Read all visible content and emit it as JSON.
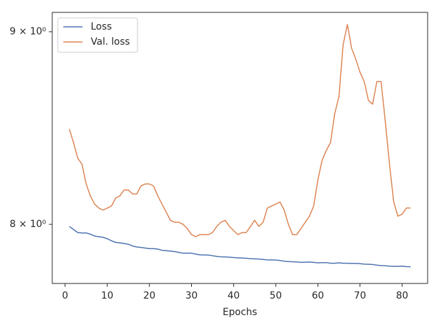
{
  "chart_data": {
    "type": "line",
    "xlabel": "Epochs",
    "log_y": true,
    "legend": "upper left",
    "x": [
      1,
      2,
      3,
      4,
      5,
      6,
      7,
      8,
      9,
      10,
      11,
      12,
      13,
      14,
      15,
      16,
      17,
      18,
      19,
      20,
      21,
      22,
      23,
      24,
      25,
      26,
      27,
      28,
      29,
      30,
      31,
      32,
      33,
      34,
      35,
      36,
      37,
      38,
      39,
      40,
      41,
      42,
      43,
      44,
      45,
      46,
      47,
      48,
      49,
      50,
      51,
      52,
      53,
      54,
      55,
      56,
      57,
      58,
      59,
      60,
      61,
      62,
      63,
      64,
      65,
      66,
      67,
      68,
      69,
      70,
      71,
      72,
      73,
      74,
      75,
      76,
      77,
      78,
      79,
      80,
      81,
      82
    ],
    "series": [
      {
        "name": "Loss",
        "color": "#4c72b0",
        "values": [
          7.99,
          7.975,
          7.96,
          7.958,
          7.958,
          7.952,
          7.943,
          7.94,
          7.937,
          7.93,
          7.92,
          7.912,
          7.91,
          7.907,
          7.903,
          7.895,
          7.89,
          7.888,
          7.885,
          7.882,
          7.882,
          7.88,
          7.874,
          7.872,
          7.87,
          7.868,
          7.864,
          7.86,
          7.86,
          7.86,
          7.856,
          7.852,
          7.852,
          7.851,
          7.848,
          7.845,
          7.843,
          7.842,
          7.841,
          7.839,
          7.838,
          7.837,
          7.836,
          7.834,
          7.833,
          7.832,
          7.83,
          7.828,
          7.828,
          7.827,
          7.825,
          7.822,
          7.82,
          7.819,
          7.818,
          7.816,
          7.817,
          7.818,
          7.816,
          7.814,
          7.815,
          7.815,
          7.812,
          7.812,
          7.814,
          7.812,
          7.812,
          7.811,
          7.811,
          7.81,
          7.808,
          7.807,
          7.806,
          7.803,
          7.801,
          7.8,
          7.798,
          7.797,
          7.797,
          7.798,
          7.796,
          7.795
        ]
      },
      {
        "name": "Val. loss",
        "color": "#dd8452",
        "values": [
          8.48,
          8.41,
          8.33,
          8.3,
          8.2,
          8.14,
          8.1,
          8.08,
          8.07,
          8.08,
          8.09,
          8.13,
          8.14,
          8.17,
          8.17,
          8.15,
          8.15,
          8.19,
          8.2,
          8.2,
          8.19,
          8.14,
          8.1,
          8.06,
          8.02,
          8.01,
          8.01,
          8.0,
          7.98,
          7.95,
          7.94,
          7.95,
          7.95,
          7.95,
          7.96,
          7.99,
          8.01,
          8.02,
          7.99,
          7.97,
          7.95,
          7.96,
          7.96,
          7.99,
          8.02,
          7.99,
          8.01,
          8.08,
          8.09,
          8.1,
          8.11,
          8.07,
          8.0,
          7.95,
          7.95,
          7.98,
          8.01,
          8.04,
          8.09,
          8.22,
          8.32,
          8.37,
          8.41,
          8.56,
          8.65,
          8.93,
          9.04,
          8.91,
          8.85,
          8.78,
          8.73,
          8.63,
          8.61,
          8.73,
          8.73,
          8.52,
          8.3,
          8.11,
          8.04,
          8.05,
          8.08,
          8.08
        ]
      }
    ],
    "xlim": [
      -3.05,
      86.05
    ],
    "xticks": [
      0,
      10,
      20,
      30,
      40,
      50,
      60,
      70,
      80
    ],
    "ylim": [
      7.716,
      9.107
    ],
    "yticks": [
      {
        "value": 8,
        "label": "8 × 10⁰"
      },
      {
        "value": 9,
        "label": "9 × 10⁰"
      }
    ]
  }
}
